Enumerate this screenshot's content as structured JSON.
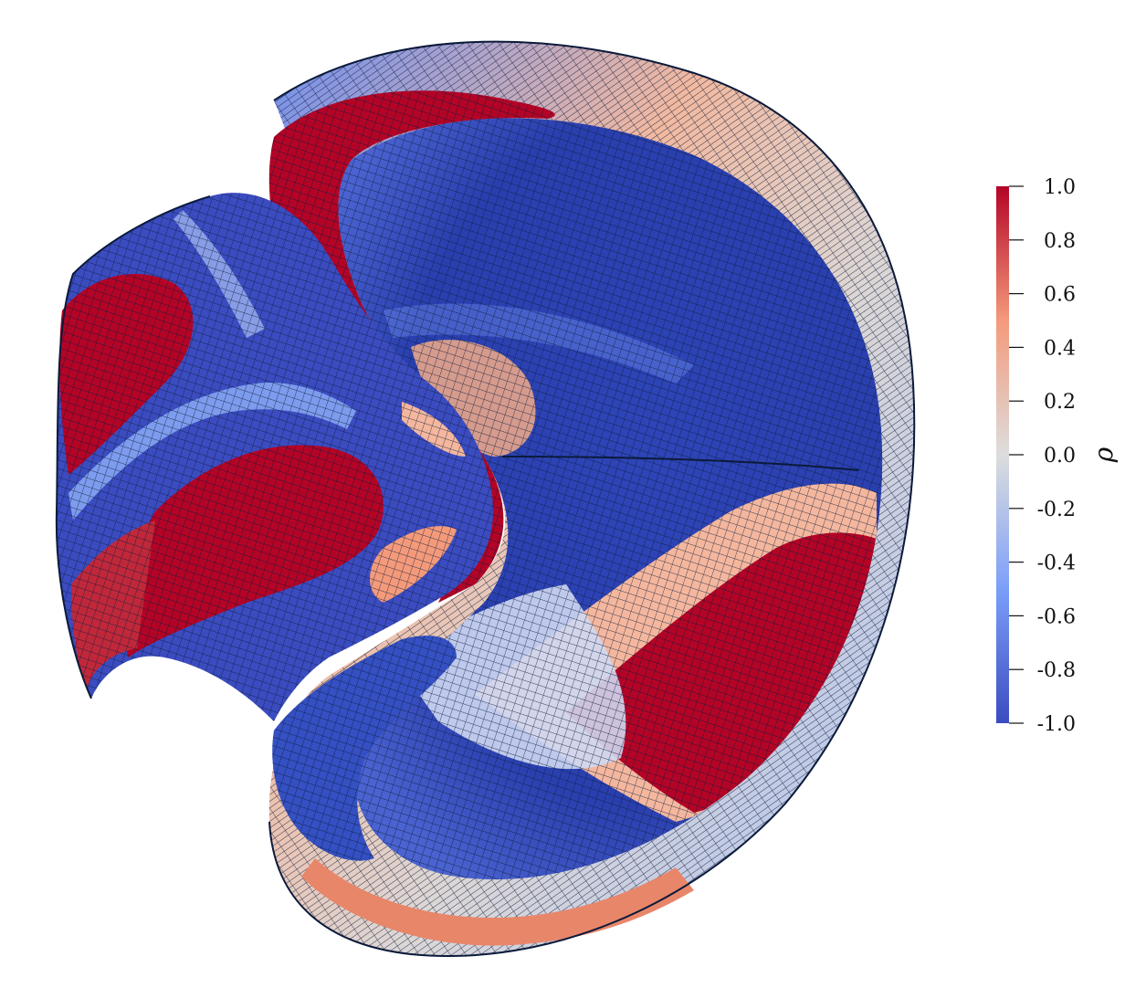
{
  "colorbar": {
    "title": "ρ",
    "range": [
      -1.0,
      1.0
    ],
    "tick_labels": [
      "1.0",
      "0.8",
      "0.6",
      "0.4",
      "0.2",
      "0.0",
      "-0.2",
      "-0.4",
      "-0.6",
      "-0.8",
      "-1.0"
    ],
    "colormap": "coolwarm",
    "color_stops": [
      {
        "value": -1.0,
        "color": "#3b4cc0"
      },
      {
        "value": -0.5,
        "color": "#7b9ff9"
      },
      {
        "value": 0.0,
        "color": "#dddddd"
      },
      {
        "value": 0.5,
        "color": "#f49a7b"
      },
      {
        "value": 1.0,
        "color": "#b40426"
      }
    ]
  },
  "surface": {
    "description_colors": {
      "mesh_line": "#0b1a3a",
      "deep_blue": "#2e45b8",
      "mid_blue": "#7b9ff9",
      "white": "#dddddd",
      "salmon": "#f49a7b",
      "deep_red": "#b40426"
    }
  }
}
